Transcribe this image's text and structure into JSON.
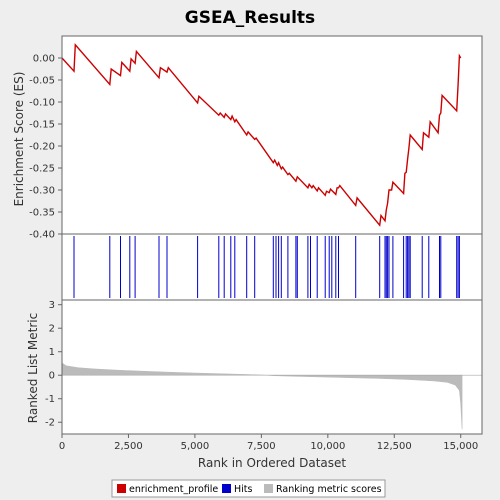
{
  "chart_data": {
    "type": "line",
    "title": "GSEA_Results",
    "xlabel": "Rank in Ordered Dataset",
    "ylabel_top": "Enrichment Score (ES)",
    "ylabel_bottom": "Ranked List Metric",
    "xlim": [
      0,
      15800
    ],
    "x_ticks": [
      0,
      2500,
      5000,
      7500,
      10000,
      12500,
      15000
    ],
    "x_tick_labels": [
      "0",
      "2,500",
      "5,000",
      "7,500",
      "10,000",
      "12,500",
      "15,000"
    ],
    "es_ylim": [
      -0.4,
      0.05
    ],
    "es_ticks": [
      0.0,
      -0.05,
      -0.1,
      -0.15,
      -0.2,
      -0.25,
      -0.3,
      -0.35,
      -0.4
    ],
    "es_tick_labels": [
      "0.00",
      "-0.05",
      "-0.10",
      "-0.15",
      "-0.20",
      "-0.25",
      "-0.30",
      "-0.35",
      "-0.40"
    ],
    "metric_ylim": [
      -2.5,
      3.2
    ],
    "metric_ticks": [
      3,
      2,
      1,
      0,
      -1,
      -2
    ],
    "metric_tick_labels": [
      "3",
      "2",
      "1",
      "0",
      "-1",
      "-2"
    ],
    "grid": false,
    "colors": {
      "enrichment_profile": "#cc0000",
      "hits": "#0000cc",
      "ranking_metric": "#bbbbbb",
      "plot_bg": "#ffffff",
      "page_bg": "#eeeeee"
    },
    "enrichment_profile": {
      "x": [
        0,
        450,
        500,
        1800,
        1850,
        2200,
        2250,
        2550,
        2600,
        2750,
        2800,
        3650,
        3700,
        3950,
        4000,
        5100,
        5150,
        5900,
        5950,
        6100,
        6150,
        6350,
        6400,
        6500,
        6550,
        6950,
        7000,
        7250,
        7300,
        7950,
        8000,
        8100,
        8150,
        8250,
        8300,
        8500,
        8550,
        8800,
        8850,
        9250,
        9300,
        9400,
        9450,
        9600,
        9650,
        9900,
        9950,
        10050,
        10100,
        10300,
        10350,
        10400,
        10450,
        11050,
        11100,
        11950,
        12000,
        12150,
        12200,
        12250,
        12300,
        12400,
        12450,
        12850,
        12900,
        12950,
        13000,
        13050,
        13100,
        13550,
        13600,
        13800,
        13850,
        14150,
        14200,
        14250,
        14300,
        14850,
        14900,
        14950,
        15000
      ],
      "y": [
        0.0,
        -0.03,
        0.03,
        -0.06,
        -0.025,
        -0.04,
        -0.01,
        -0.03,
        -0.002,
        -0.012,
        0.015,
        -0.045,
        -0.022,
        -0.032,
        -0.022,
        -0.102,
        -0.087,
        -0.13,
        -0.125,
        -0.135,
        -0.127,
        -0.14,
        -0.132,
        -0.145,
        -0.14,
        -0.175,
        -0.168,
        -0.185,
        -0.182,
        -0.238,
        -0.232,
        -0.244,
        -0.238,
        -0.252,
        -0.248,
        -0.265,
        -0.262,
        -0.28,
        -0.27,
        -0.295,
        -0.287,
        -0.295,
        -0.29,
        -0.302,
        -0.295,
        -0.312,
        -0.303,
        -0.306,
        -0.298,
        -0.31,
        -0.295,
        -0.295,
        -0.29,
        -0.335,
        -0.318,
        -0.38,
        -0.358,
        -0.37,
        -0.345,
        -0.33,
        -0.3,
        -0.3,
        -0.282,
        -0.308,
        -0.262,
        -0.26,
        -0.23,
        -0.205,
        -0.175,
        -0.208,
        -0.17,
        -0.18,
        -0.145,
        -0.17,
        -0.13,
        -0.125,
        -0.085,
        -0.12,
        -0.06,
        0.005,
        0.0
      ]
    },
    "hits": [
      450,
      1800,
      2200,
      2550,
      2750,
      3650,
      3950,
      5100,
      5900,
      6100,
      6350,
      6500,
      6950,
      7250,
      7950,
      8050,
      8150,
      8250,
      8500,
      8800,
      8850,
      9250,
      9350,
      9600,
      9900,
      10050,
      10150,
      10300,
      10400,
      11050,
      11950,
      12150,
      12200,
      12250,
      12300,
      12450,
      12850,
      12950,
      13000,
      13050,
      13100,
      13550,
      13800,
      14200,
      14250,
      14850,
      14900,
      14950
    ],
    "ranking_metric": {
      "x": [
        0,
        150,
        600,
        1200,
        2000,
        3000,
        4000,
        5000,
        6000,
        7000,
        7700,
        8000,
        9000,
        10000,
        11000,
        12000,
        13000,
        14000,
        14500,
        14800,
        14950,
        15000,
        15050
      ],
      "y": [
        0.52,
        0.4,
        0.32,
        0.27,
        0.22,
        0.17,
        0.13,
        0.09,
        0.06,
        0.03,
        0.0,
        -0.02,
        -0.05,
        -0.08,
        -0.11,
        -0.14,
        -0.18,
        -0.24,
        -0.3,
        -0.42,
        -0.65,
        -1.2,
        -2.3
      ]
    },
    "legend": {
      "placement": "bottom",
      "entries": [
        {
          "name": "enrichment_profile",
          "color": "#cc0000"
        },
        {
          "name": "Hits",
          "color": "#0000cc"
        },
        {
          "name": "Ranking metric scores",
          "color": "#bbbbbb"
        }
      ]
    }
  }
}
